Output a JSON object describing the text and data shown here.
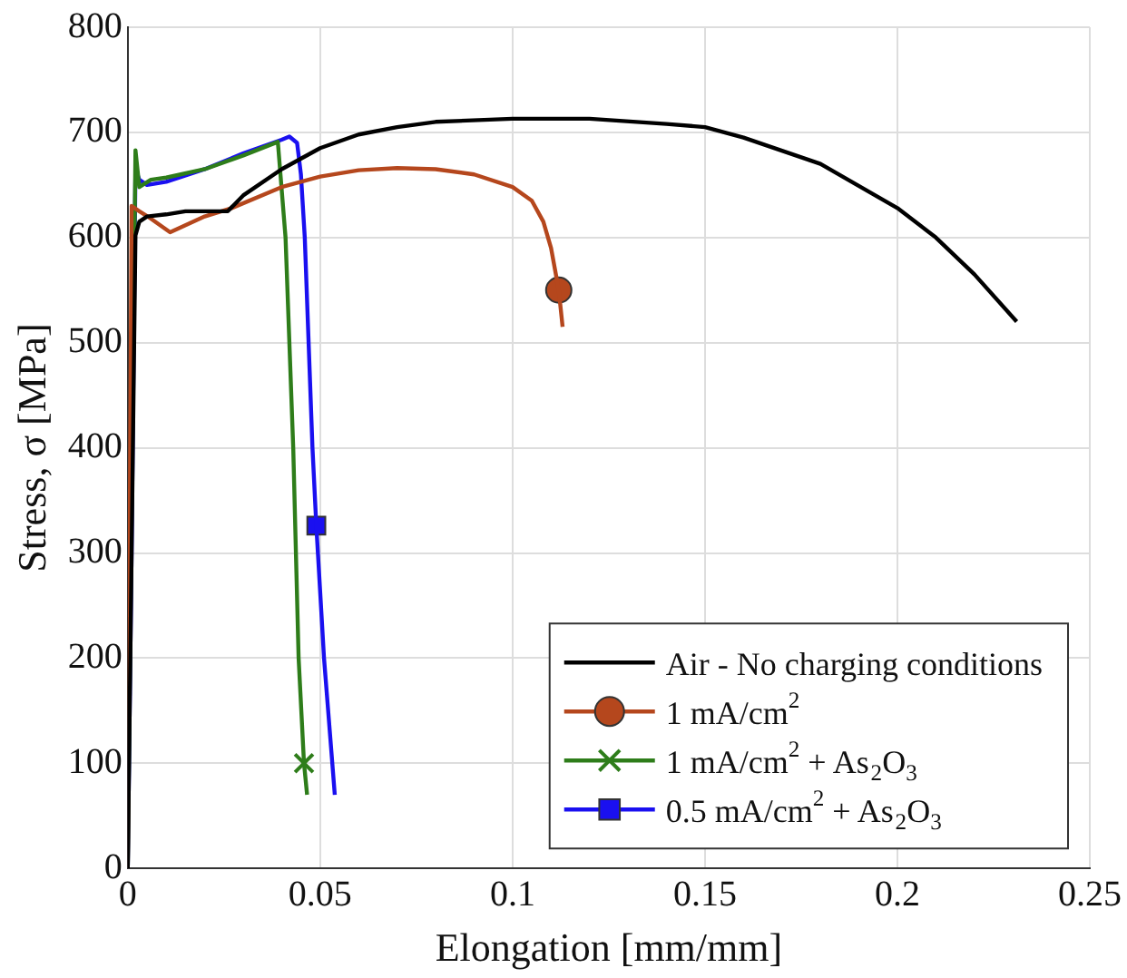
{
  "chart_data": {
    "type": "line",
    "xlabel": "Elongation [mm/mm]",
    "ylabel": "Stress, σ [MPa]",
    "xlim": [
      0,
      0.25
    ],
    "xticks": [
      0,
      0.05,
      0.1,
      0.15,
      0.2,
      0.25
    ],
    "ylim": [
      0,
      800
    ],
    "yticks": [
      0,
      100,
      200,
      300,
      400,
      500,
      600,
      700,
      800
    ],
    "grid": true,
    "legend": "bottom right",
    "series": [
      {
        "name": "Air - No charging conditions",
        "color": "#000000",
        "x": [
          0,
          0.002,
          0.003,
          0.005,
          0.01,
          0.015,
          0.02,
          0.026,
          0.03,
          0.04,
          0.05,
          0.06,
          0.07,
          0.08,
          0.1,
          0.12,
          0.14,
          0.15,
          0.16,
          0.18,
          0.2,
          0.21,
          0.22,
          0.231
        ],
        "values": [
          0,
          602,
          615,
          620,
          622,
          625,
          625,
          625,
          640,
          665,
          685,
          698,
          705,
          710,
          713,
          713,
          708,
          705,
          695,
          670,
          628,
          600,
          565,
          520
        ]
      },
      {
        "name": "1 mA/cm$^{2}$",
        "color": "#b5471d",
        "x": [
          0,
          0.001,
          0.003,
          0.006,
          0.011,
          0.02,
          0.027,
          0.04,
          0.05,
          0.06,
          0.07,
          0.08,
          0.09,
          0.1,
          0.105,
          0.108,
          0.11,
          0.112,
          0.113
        ],
        "values": [
          0,
          630,
          625,
          618,
          605,
          620,
          628,
          648,
          658,
          664,
          666,
          665,
          660,
          648,
          635,
          615,
          590,
          550,
          515
        ]
      },
      {
        "type": "scatter",
        "color": "#b5471d",
        "marker": "circle",
        "x": [
          0.112
        ],
        "values": [
          550
        ]
      },
      {
        "name": "1 mA/cm$^{2}$ + As$_{2}$O$_{3}$",
        "color": "#2e7d1a",
        "x": [
          0,
          0.002,
          0.003,
          0.006,
          0.01,
          0.02,
          0.03,
          0.039,
          0.041,
          0.043,
          0.0444,
          0.0458,
          0.0466
        ],
        "values": [
          0,
          683,
          648,
          655,
          657,
          665,
          678,
          691,
          600,
          400,
          200,
          100,
          70
        ]
      },
      {
        "type": "scatter",
        "color": "#2e7d1a",
        "marker": "cross",
        "x": [
          0.0458
        ],
        "values": [
          100
        ]
      },
      {
        "name": "0.5 mA/cm$^{2}$ + As$_{2}$O$_{3}$",
        "color": "#1a10f0",
        "x": [
          0,
          0.001,
          0.002,
          0.003,
          0.005,
          0.01,
          0.02,
          0.03,
          0.04,
          0.042,
          0.044,
          0.045,
          0.046,
          0.048,
          0.049,
          0.051,
          0.0538
        ],
        "values": [
          0,
          300,
          665,
          655,
          650,
          653,
          665,
          680,
          693,
          696,
          690,
          660,
          600,
          400,
          326,
          200,
          70
        ]
      },
      {
        "type": "scatter",
        "color": "#1a10f0",
        "marker": "square",
        "x": [
          0.049
        ],
        "values": [
          326
        ]
      }
    ]
  }
}
